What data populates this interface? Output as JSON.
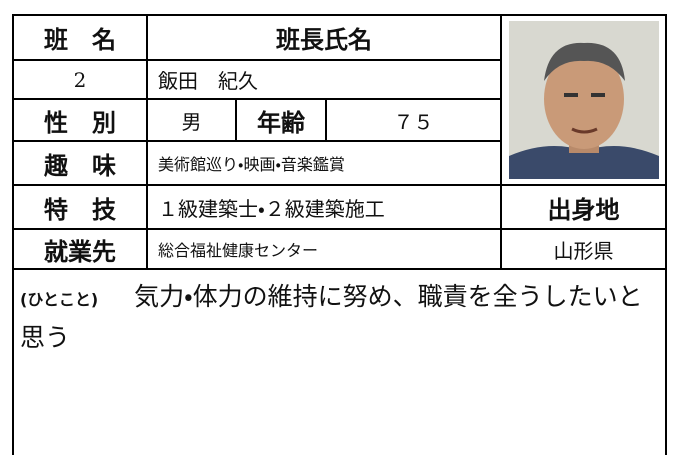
{
  "team": {
    "label": "班　名",
    "value": "2"
  },
  "leader": {
    "label": "班長氏名",
    "value": "飯田　紀久"
  },
  "gender": {
    "label": "性　別",
    "value": "男"
  },
  "age": {
    "label": "年齢",
    "value": "７５"
  },
  "hobby": {
    "label": "趣　味",
    "value": "美術館巡り・映画・音楽鑑賞"
  },
  "skill": {
    "label": "特　技",
    "value": "１級建築士・２級建築施工"
  },
  "hometown": {
    "label": "出身地",
    "value": "山形県"
  },
  "workplace": {
    "label": "就業先",
    "value": "総合福祉健康センター"
  },
  "comment": {
    "label": "(ひとこと)",
    "text": "気力・体力の維持に努め、職責を全うしたいと思う"
  }
}
